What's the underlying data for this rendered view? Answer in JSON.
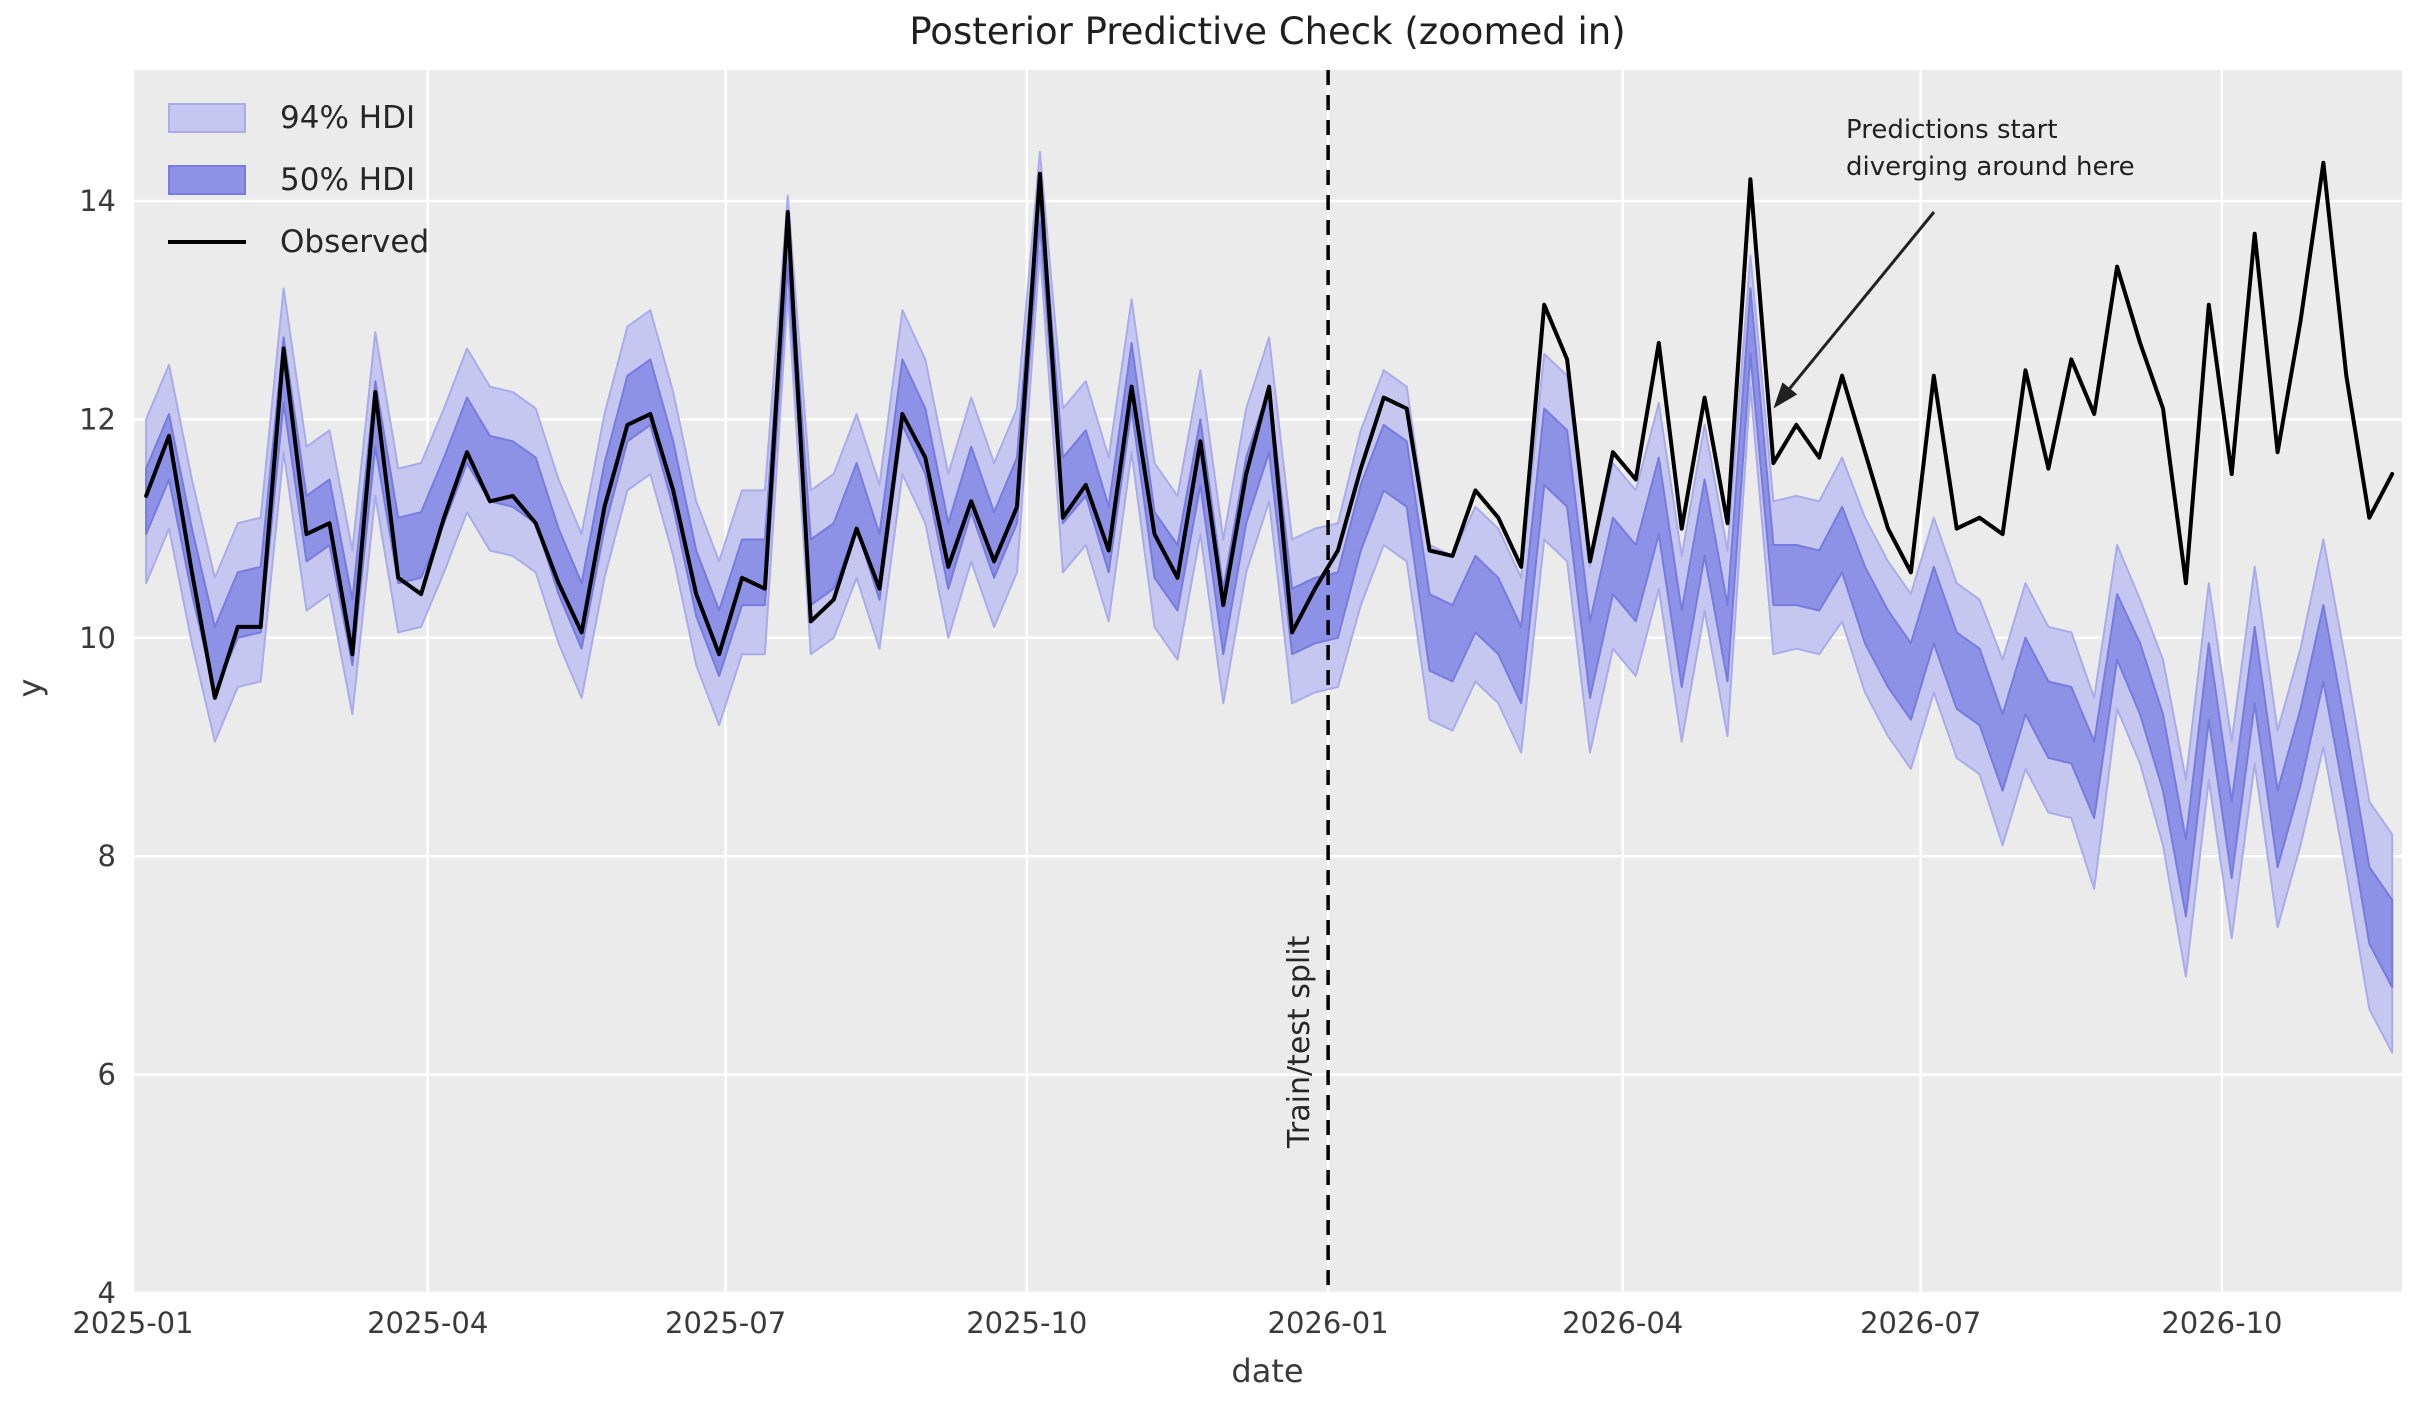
{
  "title": "Posterior Predictive Check (zoomed in)",
  "axes": {
    "xlabel": "date",
    "ylabel": "y",
    "xlim": [
      "2025-01-01",
      "2026-11-25"
    ],
    "ylim": [
      4,
      15.2
    ],
    "xticks": [
      {
        "value": "2025-01-01",
        "label": "2025-01"
      },
      {
        "value": "2025-04-01",
        "label": "2025-04"
      },
      {
        "value": "2025-07-01",
        "label": "2025-07"
      },
      {
        "value": "2025-10-01",
        "label": "2025-10"
      },
      {
        "value": "2026-01-01",
        "label": "2026-01"
      },
      {
        "value": "2026-04-01",
        "label": "2026-04"
      },
      {
        "value": "2026-07-01",
        "label": "2026-07"
      },
      {
        "value": "2026-10-01",
        "label": "2026-10"
      }
    ],
    "yticks": [
      4,
      6,
      8,
      10,
      12,
      14
    ],
    "grid": true
  },
  "colors": {
    "figure_bg": "#ffffff",
    "axes_bg": "#ebebeb",
    "grid": "#ffffff",
    "hdi94_fill": "#c5c7f0",
    "hdi94_edge": "#a9ace9",
    "hdi50_fill": "#8e92e6",
    "hdi50_edge": "#767bdd",
    "observed": "#000000",
    "vline": "#000000",
    "annotation": "#212121"
  },
  "legend": [
    {
      "label": "94% HDI",
      "type": "patch",
      "fill": "#c5c7f0",
      "edge": "#a9ace9"
    },
    {
      "label": "50% HDI",
      "type": "patch",
      "fill": "#8e92e6",
      "edge": "#767bdd"
    },
    {
      "label": "Observed",
      "type": "line",
      "fill": "#000000",
      "edge": "#000000"
    }
  ],
  "vline": {
    "date": "2026-01-01",
    "label": "Train/test split"
  },
  "annotation": {
    "line1": "Predictions start",
    "line2": "diverging around here",
    "target_date": "2026-05-17",
    "target_value": 12.1
  },
  "chart_data": {
    "type": "line",
    "title": "Posterior Predictive Check (zoomed in)",
    "xlabel": "date",
    "ylabel": "y",
    "ylim": [
      4,
      15.2
    ],
    "legend_position": "upper left",
    "x": [
      "2025-01-05",
      "2025-01-12",
      "2025-01-19",
      "2025-01-26",
      "2025-02-02",
      "2025-02-09",
      "2025-02-16",
      "2025-02-23",
      "2025-03-02",
      "2025-03-09",
      "2025-03-16",
      "2025-03-23",
      "2025-03-30",
      "2025-04-06",
      "2025-04-13",
      "2025-04-20",
      "2025-04-27",
      "2025-05-04",
      "2025-05-11",
      "2025-05-18",
      "2025-05-25",
      "2025-06-01",
      "2025-06-08",
      "2025-06-15",
      "2025-06-22",
      "2025-06-29",
      "2025-07-06",
      "2025-07-13",
      "2025-07-20",
      "2025-07-27",
      "2025-08-03",
      "2025-08-10",
      "2025-08-17",
      "2025-08-24",
      "2025-08-31",
      "2025-09-07",
      "2025-09-14",
      "2025-09-21",
      "2025-09-28",
      "2025-10-05",
      "2025-10-12",
      "2025-10-19",
      "2025-10-26",
      "2025-11-02",
      "2025-11-09",
      "2025-11-16",
      "2025-11-23",
      "2025-11-30",
      "2025-12-07",
      "2025-12-14",
      "2025-12-21",
      "2025-12-28",
      "2026-01-04",
      "2026-01-11",
      "2026-01-18",
      "2026-01-25",
      "2026-02-01",
      "2026-02-08",
      "2026-02-15",
      "2026-02-22",
      "2026-03-01",
      "2026-03-08",
      "2026-03-15",
      "2026-03-22",
      "2026-03-29",
      "2026-04-05",
      "2026-04-12",
      "2026-04-19",
      "2026-04-26",
      "2026-05-03",
      "2026-05-10",
      "2026-05-17",
      "2026-05-24",
      "2026-05-31",
      "2026-06-07",
      "2026-06-14",
      "2026-06-21",
      "2026-06-28",
      "2026-07-05",
      "2026-07-12",
      "2026-07-19",
      "2026-07-26",
      "2026-08-02",
      "2026-08-09",
      "2026-08-16",
      "2026-08-23",
      "2026-08-30",
      "2026-09-06",
      "2026-09-13",
      "2026-09-20",
      "2026-09-27",
      "2026-10-04",
      "2026-10-11",
      "2026-10-18",
      "2026-10-25",
      "2026-11-01",
      "2026-11-08",
      "2026-11-15",
      "2026-11-22"
    ],
    "series": [
      {
        "name": "Observed",
        "values": [
          11.3,
          11.85,
          10.6,
          9.45,
          10.1,
          10.1,
          12.65,
          10.95,
          11.05,
          9.85,
          12.25,
          10.55,
          10.4,
          11.1,
          11.7,
          11.25,
          11.3,
          11.05,
          10.5,
          10.05,
          11.2,
          11.95,
          12.05,
          11.35,
          10.4,
          9.85,
          10.55,
          10.45,
          13.9,
          10.15,
          10.35,
          11.0,
          10.45,
          12.05,
          11.65,
          10.65,
          11.25,
          10.7,
          11.2,
          14.25,
          11.1,
          11.4,
          10.8,
          12.3,
          10.95,
          10.55,
          11.8,
          10.3,
          11.5,
          12.3,
          10.05,
          10.45,
          10.8,
          11.55,
          12.2,
          12.1,
          10.8,
          10.75,
          11.35,
          11.1,
          10.65,
          13.05,
          12.55,
          10.7,
          11.7,
          11.45,
          12.7,
          11.0,
          12.2,
          11.05,
          14.2,
          11.6,
          11.95,
          11.65,
          12.4,
          11.7,
          11.0,
          10.6,
          12.4,
          11.0,
          11.1,
          10.95,
          12.45,
          11.55,
          12.55,
          12.05,
          13.4,
          12.7,
          12.1,
          10.5,
          13.05,
          11.5,
          13.7,
          11.7,
          12.9,
          14.35,
          12.4,
          11.1,
          11.5
        ]
      },
      {
        "name": "hdi50_lower",
        "values": [
          10.95,
          11.45,
          10.4,
          9.5,
          10.0,
          10.05,
          12.15,
          10.7,
          10.85,
          9.75,
          11.75,
          10.5,
          10.55,
          11.05,
          11.6,
          11.25,
          11.2,
          11.05,
          10.4,
          9.9,
          11.0,
          11.8,
          11.95,
          11.2,
          10.2,
          9.65,
          10.3,
          10.3,
          13.4,
          10.3,
          10.45,
          11.0,
          10.35,
          11.95,
          11.5,
          10.45,
          11.15,
          10.55,
          11.05,
          13.8,
          11.05,
          11.3,
          10.6,
          12.1,
          10.55,
          10.25,
          11.4,
          9.85,
          11.05,
          11.7,
          9.85,
          9.95,
          10.0,
          10.8,
          11.35,
          11.2,
          9.7,
          9.6,
          10.05,
          9.85,
          9.4,
          11.4,
          11.2,
          9.45,
          10.4,
          10.15,
          10.95,
          9.55,
          10.75,
          9.6,
          12.6,
          10.3,
          10.3,
          10.25,
          10.6,
          9.95,
          9.55,
          9.25,
          9.95,
          9.35,
          9.2,
          8.6,
          9.3,
          8.9,
          8.85,
          8.35,
          9.8,
          9.3,
          8.6,
          7.45,
          9.25,
          7.8,
          9.4,
          7.9,
          8.65,
          9.6,
          8.45,
          7.2,
          6.8
        ]
      },
      {
        "name": "hdi50_upper",
        "values": [
          11.55,
          12.05,
          11.0,
          10.1,
          10.6,
          10.65,
          12.75,
          11.3,
          11.45,
          10.35,
          12.35,
          11.1,
          11.15,
          11.65,
          12.2,
          11.85,
          11.8,
          11.65,
          11.0,
          10.5,
          11.6,
          12.4,
          12.55,
          11.8,
          10.8,
          10.25,
          10.9,
          10.9,
          13.8,
          10.9,
          11.05,
          11.6,
          10.95,
          12.55,
          12.1,
          11.05,
          11.75,
          11.15,
          11.65,
          14.2,
          11.65,
          11.9,
          11.2,
          12.7,
          11.15,
          10.85,
          12.0,
          10.45,
          11.65,
          12.3,
          10.45,
          10.55,
          10.6,
          11.4,
          11.95,
          11.8,
          10.4,
          10.3,
          10.75,
          10.55,
          10.1,
          12.1,
          11.9,
          10.15,
          11.1,
          10.85,
          11.65,
          10.25,
          11.45,
          10.3,
          13.2,
          10.85,
          10.85,
          10.8,
          11.2,
          10.65,
          10.25,
          9.95,
          10.65,
          10.05,
          9.9,
          9.3,
          10.0,
          9.6,
          9.55,
          9.05,
          10.4,
          9.95,
          9.3,
          8.15,
          9.95,
          8.5,
          10.1,
          8.6,
          9.35,
          10.3,
          9.15,
          7.9,
          7.6
        ]
      },
      {
        "name": "hdi94_lower",
        "values": [
          10.5,
          11.0,
          9.95,
          9.05,
          9.55,
          9.6,
          11.7,
          10.25,
          10.4,
          9.3,
          11.3,
          10.05,
          10.1,
          10.6,
          11.15,
          10.8,
          10.75,
          10.6,
          9.95,
          9.45,
          10.55,
          11.35,
          11.5,
          10.75,
          9.75,
          9.2,
          9.85,
          9.85,
          13.15,
          9.85,
          10.0,
          10.55,
          9.9,
          11.5,
          11.05,
          10.0,
          10.7,
          10.1,
          10.6,
          13.55,
          10.6,
          10.85,
          10.15,
          11.7,
          10.1,
          9.8,
          10.95,
          9.4,
          10.6,
          11.25,
          9.4,
          9.5,
          9.55,
          10.3,
          10.85,
          10.7,
          9.25,
          9.15,
          9.6,
          9.4,
          8.95,
          10.9,
          10.7,
          8.95,
          9.9,
          9.65,
          10.45,
          9.05,
          10.25,
          9.1,
          12.3,
          9.85,
          9.9,
          9.85,
          10.15,
          9.5,
          9.1,
          8.8,
          9.5,
          8.9,
          8.75,
          8.1,
          8.8,
          8.4,
          8.35,
          7.7,
          9.35,
          8.85,
          8.1,
          6.9,
          8.7,
          7.25,
          8.85,
          7.35,
          8.1,
          9.0,
          7.85,
          6.6,
          6.2
        ]
      },
      {
        "name": "hdi94_upper",
        "values": [
          12.0,
          12.5,
          11.45,
          10.55,
          11.05,
          11.1,
          13.2,
          11.75,
          11.9,
          10.8,
          12.8,
          11.55,
          11.6,
          12.1,
          12.65,
          12.3,
          12.25,
          12.1,
          11.45,
          10.95,
          12.05,
          12.85,
          13.0,
          12.25,
          11.25,
          10.7,
          11.35,
          11.35,
          14.05,
          11.35,
          11.5,
          12.05,
          11.4,
          13.0,
          12.55,
          11.5,
          12.2,
          11.6,
          12.1,
          14.45,
          12.1,
          12.35,
          11.65,
          13.1,
          11.6,
          11.3,
          12.45,
          10.9,
          12.1,
          12.75,
          10.9,
          11.0,
          11.05,
          11.9,
          12.45,
          12.3,
          10.85,
          10.75,
          11.2,
          11.0,
          10.55,
          12.6,
          12.4,
          10.65,
          11.6,
          11.35,
          12.15,
          10.75,
          11.95,
          10.8,
          13.5,
          11.25,
          11.3,
          11.25,
          11.65,
          11.1,
          10.7,
          10.4,
          11.1,
          10.5,
          10.35,
          9.8,
          10.5,
          10.1,
          10.05,
          9.45,
          10.85,
          10.35,
          9.8,
          8.7,
          10.5,
          9.05,
          10.65,
          9.15,
          9.9,
          10.9,
          9.75,
          8.5,
          8.2
        ]
      }
    ]
  }
}
